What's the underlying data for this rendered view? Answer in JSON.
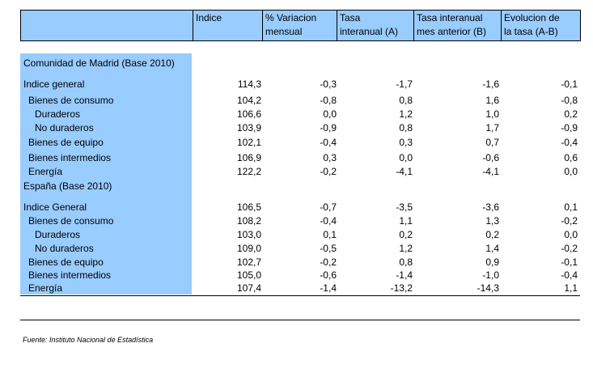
{
  "header": {
    "col1": "Indice",
    "col2": [
      "% Variacion",
      "mensual"
    ],
    "col3": [
      "Tasa",
      "interanual (A)"
    ],
    "col4": [
      "Tasa interanual",
      "mes anterior (B)"
    ],
    "col5": [
      "Evolucion de",
      "la tasa (A-B)"
    ]
  },
  "madrid": {
    "title": "Comunidad de Madrid (Base 2010)",
    "rows": [
      {
        "label": "Indice general",
        "v": [
          "114,3",
          "-0,3",
          "-1,7",
          "-1,6",
          "-0,1"
        ]
      },
      {
        "label": "Bienes de consumo",
        "v": [
          "104,2",
          "-0,8",
          "0,8",
          "1,6",
          "-0,8"
        ]
      },
      {
        "label": "Duraderos",
        "v": [
          "106,6",
          "0,0",
          "1,2",
          "1,0",
          "0,2"
        ]
      },
      {
        "label": "No duraderos",
        "v": [
          "103,9",
          "-0,9",
          "0,8",
          "1,7",
          "-0,9"
        ]
      },
      {
        "label": "Bienes de equipo",
        "v": [
          "102,1",
          "-0,4",
          "0,3",
          "0,7",
          "-0,4"
        ]
      },
      {
        "label": "Bienes intermedios",
        "v": [
          "106,9",
          "0,3",
          "0,0",
          "-0,6",
          "0,6"
        ]
      },
      {
        "label": "Energía",
        "v": [
          "122,2",
          "-0,2",
          "-4,1",
          "-4,1",
          "0,0"
        ]
      }
    ]
  },
  "spain": {
    "title": "España (Base 2010)",
    "rows": [
      {
        "label": "Indice General",
        "v": [
          "106,5",
          "-0,7",
          "-3,5",
          "-3,6",
          "0,1"
        ]
      },
      {
        "label": "Bienes de consumo",
        "v": [
          "108,2",
          "-0,4",
          "1,1",
          "1,3",
          "-0,2"
        ]
      },
      {
        "label": "Duraderos",
        "v": [
          "103,0",
          "0,1",
          "0,2",
          "0,2",
          "0,0"
        ]
      },
      {
        "label": "No duraderos",
        "v": [
          "109,0",
          "-0,5",
          "1,2",
          "1,4",
          "-0,2"
        ]
      },
      {
        "label": "Bienes de equipo",
        "v": [
          "102,7",
          "-0,2",
          "0,8",
          "0,9",
          "-0,1"
        ]
      },
      {
        "label": "Bienes intermedios",
        "v": [
          "105,0",
          "-0,6",
          "-1,4",
          "-1,0",
          "-0,4"
        ]
      },
      {
        "label": "Energía",
        "v": [
          "107,4",
          "-1,4",
          "-13,2",
          "-14,3",
          "1,1"
        ]
      }
    ]
  },
  "source": "Fuente: Instituto Nacional de Estadística",
  "colors": {
    "header_bg": "#99ccff"
  }
}
